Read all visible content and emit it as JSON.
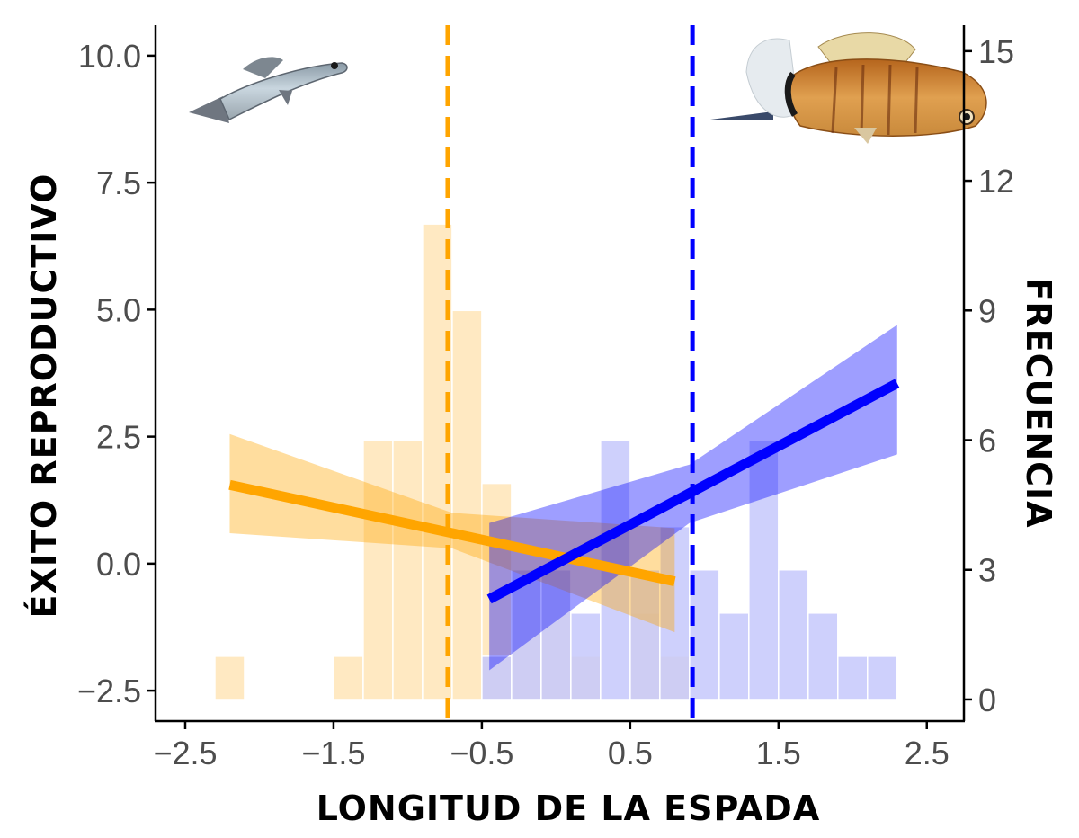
{
  "chart_data": {
    "type": "histogram+line",
    "xlabel": "LONGITUD DE LA ESPADA",
    "ylabel_left": "ÉXITO REPRODUCTIVO",
    "ylabel_right": "FRECUENCIA",
    "xlim": [
      -2.7,
      2.75
    ],
    "ylim_left": [
      -3.1,
      10.6
    ],
    "ylim_right": [
      -0.5,
      15.6
    ],
    "x_ticks": [
      -2.5,
      -1.5,
      -0.5,
      0.5,
      1.5,
      2.5
    ],
    "x_tick_labels": [
      "−2.5",
      "−1.5",
      "−0.5",
      "0.5",
      "1.5",
      "2.5"
    ],
    "y_left_ticks": [
      -2.5,
      0.0,
      2.5,
      5.0,
      7.5,
      10.0
    ],
    "y_left_tick_labels": [
      "−2.5",
      "0.0",
      "2.5",
      "5.0",
      "7.5",
      "10.0"
    ],
    "y_right_ticks": [
      0,
      3,
      6,
      9,
      12,
      15
    ],
    "y_right_tick_labels": [
      "0",
      "3",
      "6",
      "9",
      "12",
      "15"
    ],
    "colors": {
      "orange": "#FFA500",
      "blue": "#0000FF"
    },
    "histograms": [
      {
        "name": "orange",
        "color": "#FFA500",
        "bin_width": 0.2,
        "bins": [
          {
            "x0": -2.3,
            "count": 1
          },
          {
            "x0": -1.5,
            "count": 1
          },
          {
            "x0": -1.3,
            "count": 6
          },
          {
            "x0": -1.1,
            "count": 6
          },
          {
            "x0": -0.9,
            "count": 11
          },
          {
            "x0": -0.7,
            "count": 9
          },
          {
            "x0": -0.5,
            "count": 5
          },
          {
            "x0": -0.3,
            "count": 3
          },
          {
            "x0": -0.1,
            "count": 3
          },
          {
            "x0": 0.1,
            "count": 1
          },
          {
            "x0": 0.5,
            "count": 2
          },
          {
            "x0": 0.7,
            "count": 1
          }
        ]
      },
      {
        "name": "blue",
        "color": "#0000FF",
        "bin_width": 0.2,
        "bins": [
          {
            "x0": -0.5,
            "count": 1
          },
          {
            "x0": -0.3,
            "count": 3
          },
          {
            "x0": -0.1,
            "count": 3
          },
          {
            "x0": 0.1,
            "count": 2
          },
          {
            "x0": 0.3,
            "count": 6
          },
          {
            "x0": 0.5,
            "count": 3
          },
          {
            "x0": 0.7,
            "count": 4
          },
          {
            "x0": 0.9,
            "count": 3
          },
          {
            "x0": 1.1,
            "count": 2
          },
          {
            "x0": 1.3,
            "count": 6
          },
          {
            "x0": 1.5,
            "count": 3
          },
          {
            "x0": 1.7,
            "count": 2
          },
          {
            "x0": 1.9,
            "count": 1
          },
          {
            "x0": 2.1,
            "count": 1
          }
        ]
      }
    ],
    "regressions": [
      {
        "name": "orange",
        "color": "#FFA500",
        "x": [
          -2.2,
          0.8
        ],
        "y": [
          1.55,
          -0.35
        ],
        "ci": [
          {
            "x": -2.2,
            "lo": 0.6,
            "hi": 2.55
          },
          {
            "x": -0.7,
            "lo": 0.3,
            "hi": 1.0
          },
          {
            "x": 0.8,
            "lo": -1.35,
            "hi": 0.7
          }
        ]
      },
      {
        "name": "blue",
        "color": "#0000FF",
        "x": [
          -0.45,
          2.3
        ],
        "y": [
          -0.7,
          3.55
        ],
        "ci": [
          {
            "x": -0.45,
            "lo": -2.1,
            "hi": 0.8
          },
          {
            "x": 0.9,
            "lo": 0.8,
            "hi": 1.95
          },
          {
            "x": 2.3,
            "lo": 2.15,
            "hi": 4.7
          }
        ]
      }
    ],
    "vlines": [
      {
        "name": "orange-mean",
        "x": -0.73,
        "color": "#FFA500"
      },
      {
        "name": "blue-mean",
        "x": 0.92,
        "color": "#0000FF"
      }
    ],
    "images": [
      {
        "name": "female-fish",
        "position": "top-left"
      },
      {
        "name": "male-swordtail-fish",
        "position": "top-right"
      }
    ]
  }
}
